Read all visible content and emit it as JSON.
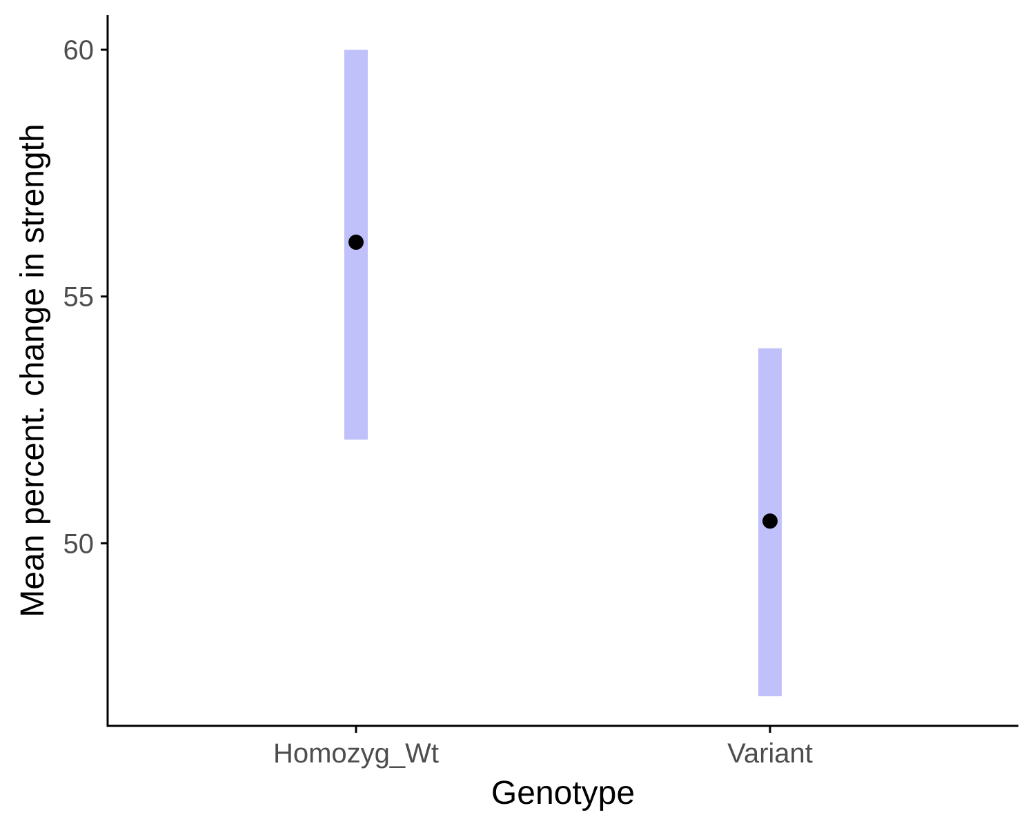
{
  "chart_data": {
    "type": "pointrange",
    "xlabel": "Genotype",
    "ylabel": "Mean percent. change in strength",
    "categories": [
      "Homozyg_Wt",
      "Variant"
    ],
    "series": [
      {
        "means": [
          56.1,
          50.45
        ],
        "lower": [
          52.1,
          46.9
        ],
        "upper": [
          60.0,
          53.95
        ]
      }
    ],
    "ylim": [
      46.3,
      60.7
    ],
    "yticks": [
      50,
      55,
      60
    ],
    "grid": false,
    "legend": "none",
    "colors": {
      "interval": "#c0c0fb",
      "point": "#000000",
      "axis": "#000000"
    }
  }
}
